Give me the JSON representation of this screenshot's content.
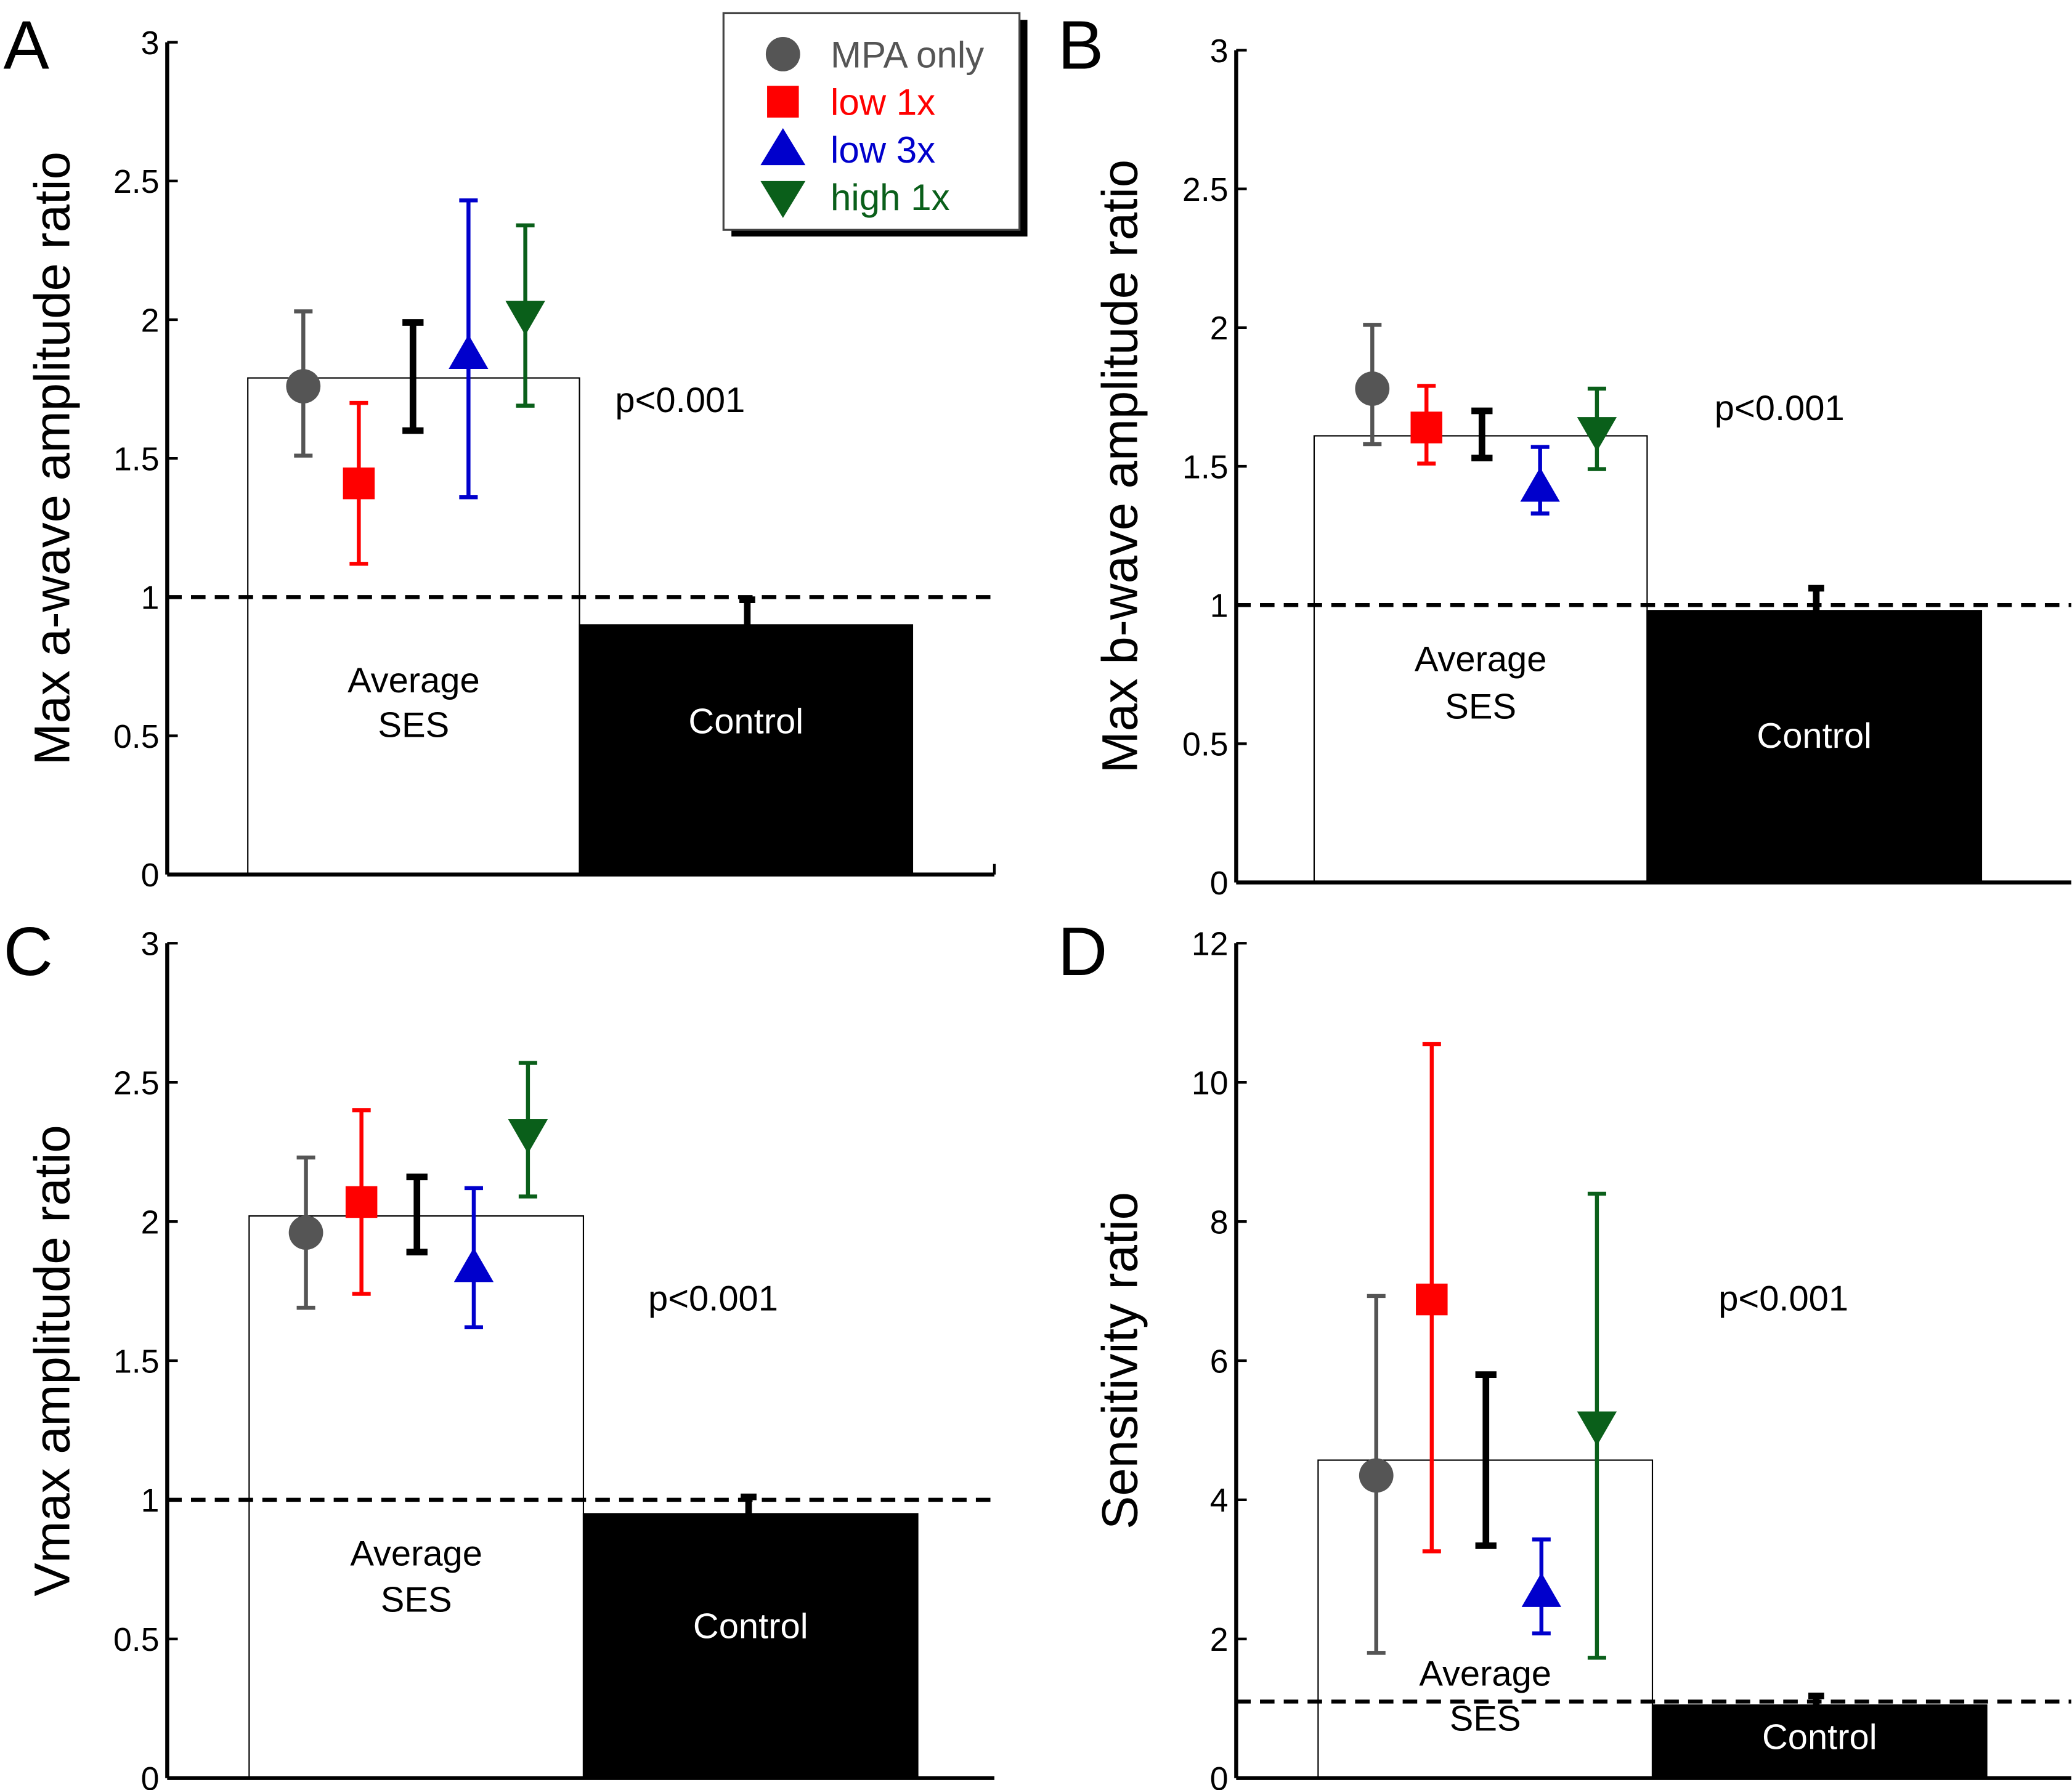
{
  "figure": {
    "legend": {
      "entries": [
        {
          "label": "MPA only",
          "marker": "circle",
          "color": "#555555"
        },
        {
          "label": "low 1x",
          "marker": "square",
          "color": "#ff0000"
        },
        {
          "label": "low 3x",
          "marker": "triangle-up",
          "color": "#0000cc"
        },
        {
          "label": "high 1x",
          "marker": "triangle-down",
          "color": "#0a5f1a"
        }
      ]
    }
  },
  "chart_data": [
    {
      "panel": "A",
      "type": "bar",
      "ylabel": "Max a-wave amplitude ratio",
      "ylim": [
        0,
        3
      ],
      "yticks": [
        "0",
        "0.5",
        "1",
        "1.5",
        "2",
        "2.5",
        "3"
      ],
      "ytick_values": [
        0,
        0.5,
        1,
        1.5,
        2,
        2.5,
        3
      ],
      "reference_line": 1.0,
      "annotation": "p<0.001",
      "bars": [
        {
          "label_lines": [
            "Average",
            "SES"
          ],
          "value": 1.79,
          "fill": "#ffffff",
          "error_low": 1.6,
          "error_high": 1.99
        },
        {
          "label_lines": [
            "Control"
          ],
          "value": 0.9,
          "fill": "#000000",
          "error_high": 1.0
        }
      ],
      "points": [
        {
          "group": "MPA only",
          "value": 1.76,
          "error_low": 1.51,
          "error_high": 2.03
        },
        {
          "group": "low 1x",
          "value": 1.41,
          "error_low": 1.12,
          "error_high": 1.7
        },
        {
          "group": "low 3x",
          "value": 1.87,
          "error_low": 1.36,
          "error_high": 2.43
        },
        {
          "group": "high 1x",
          "value": 2.02,
          "error_low": 1.69,
          "error_high": 2.34
        }
      ]
    },
    {
      "panel": "B",
      "type": "bar",
      "ylabel": "Max b-wave amplitude ratio",
      "ylim": [
        0,
        3
      ],
      "yticks": [
        "0",
        "0.5",
        "1",
        "1.5",
        "2",
        "2.5",
        "3"
      ],
      "ytick_values": [
        0,
        0.5,
        1,
        1.5,
        2,
        2.5,
        3
      ],
      "reference_line": 1.0,
      "annotation": "p<0.001",
      "bars": [
        {
          "label_lines": [
            "Average",
            "SES"
          ],
          "value": 1.61,
          "fill": "#ffffff",
          "error_low": 1.53,
          "error_high": 1.7
        },
        {
          "label_lines": [
            "Control"
          ],
          "value": 0.98,
          "fill": "#000000",
          "error_high": 1.07
        }
      ],
      "points": [
        {
          "group": "MPA only",
          "value": 1.78,
          "error_low": 1.58,
          "error_high": 2.01
        },
        {
          "group": "low 1x",
          "value": 1.64,
          "error_low": 1.51,
          "error_high": 1.79
        },
        {
          "group": "low 3x",
          "value": 1.42,
          "error_low": 1.33,
          "error_high": 1.57
        },
        {
          "group": "high 1x",
          "value": 1.63,
          "error_low": 1.49,
          "error_high": 1.78
        }
      ]
    },
    {
      "panel": "C",
      "type": "bar",
      "ylabel": "Vmax amplitude ratio",
      "ylim": [
        0,
        3
      ],
      "yticks": [
        "0",
        "0.5",
        "1",
        "1.5",
        "2",
        "2.5",
        "3"
      ],
      "ytick_values": [
        0,
        0.5,
        1,
        1.5,
        2,
        2.5,
        3
      ],
      "reference_line": 1.0,
      "annotation": "p<0.001",
      "bars": [
        {
          "label_lines": [
            "Average",
            "SES"
          ],
          "value": 2.02,
          "fill": "#ffffff",
          "error_low": 1.89,
          "error_high": 2.16
        },
        {
          "label_lines": [
            "Control"
          ],
          "value": 0.95,
          "fill": "#000000",
          "error_high": 1.02
        }
      ],
      "points": [
        {
          "group": "MPA only",
          "value": 1.96,
          "error_low": 1.69,
          "error_high": 2.23
        },
        {
          "group": "low 1x",
          "value": 2.07,
          "error_low": 1.74,
          "error_high": 2.4
        },
        {
          "group": "low 3x",
          "value": 1.83,
          "error_low": 1.62,
          "error_high": 2.12
        },
        {
          "group": "high 1x",
          "value": 2.32,
          "error_low": 2.09,
          "error_high": 2.57
        }
      ]
    },
    {
      "panel": "D",
      "type": "bar",
      "ylabel": "Sensitivity ratio",
      "ylim": [
        0,
        12
      ],
      "yticks": [
        "0",
        "2",
        "4",
        "6",
        "8",
        "10",
        "12"
      ],
      "ytick_values": [
        0,
        2,
        4,
        6,
        8,
        10,
        12
      ],
      "reference_line": 1.1,
      "annotation": "p<0.001",
      "bars": [
        {
          "label_lines": [
            "Average",
            "SES"
          ],
          "value": 4.57,
          "fill": "#ffffff",
          "error_low": 3.34,
          "error_high": 5.8
        },
        {
          "label_lines": [
            "Control"
          ],
          "value": 1.05,
          "fill": "#000000",
          "error_high": 1.22
        }
      ],
      "points": [
        {
          "group": "MPA only",
          "value": 4.35,
          "error_low": 1.8,
          "error_high": 6.93
        },
        {
          "group": "low 1x",
          "value": 6.88,
          "error_low": 3.26,
          "error_high": 10.55
        },
        {
          "group": "low 3x",
          "value": 2.65,
          "error_low": 2.08,
          "error_high": 3.43
        },
        {
          "group": "high 1x",
          "value": 5.08,
          "error_low": 1.73,
          "error_high": 8.4
        }
      ]
    }
  ]
}
